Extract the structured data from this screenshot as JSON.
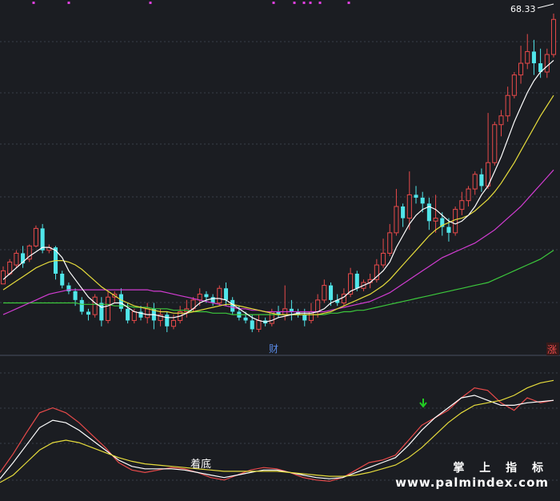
{
  "price_label": "68.33",
  "marker_cai": "财",
  "marker_zhang": "涨",
  "lower_label": "着底",
  "watermark_cn": "掌 上 指 标",
  "watermark_url": "www.palmindex.com",
  "colors": {
    "bg": "#1b1d22",
    "up": "#e84a4a",
    "down": "#50e6ea",
    "ma5": "#ffffff",
    "ma10": "#e6dc3c",
    "ma20": "#d23cd2",
    "ma60": "#3cc83c",
    "grid": "#3a3f4a",
    "dot": "#e040e0",
    "arrow": "#22cc22"
  },
  "chart_data": [
    {
      "type": "candlestick",
      "title": "",
      "price_label": "68.33",
      "candles": [
        [
          0.59,
          0.68,
          0.6,
          0.71
        ],
        [
          0.66,
          0.74,
          0.65,
          0.76
        ],
        [
          0.72,
          0.8,
          0.7,
          0.82
        ],
        [
          0.8,
          0.73,
          0.7,
          0.85
        ],
        [
          0.76,
          0.85,
          0.74,
          0.86
        ],
        [
          0.85,
          0.97,
          0.84,
          0.99
        ],
        [
          0.97,
          0.82,
          0.8,
          1.0
        ],
        [
          0.82,
          0.84,
          0.8,
          0.86
        ],
        [
          0.84,
          0.66,
          0.62,
          0.85
        ],
        [
          0.66,
          0.58,
          0.56,
          0.68
        ],
        [
          0.58,
          0.54,
          0.52,
          0.6
        ],
        [
          0.54,
          0.48,
          0.44,
          0.56
        ],
        [
          0.48,
          0.4,
          0.38,
          0.5
        ],
        [
          0.4,
          0.38,
          0.34,
          0.42
        ],
        [
          0.38,
          0.5,
          0.36,
          0.52
        ],
        [
          0.46,
          0.34,
          0.3,
          0.5
        ],
        [
          0.34,
          0.5,
          0.32,
          0.54
        ],
        [
          0.5,
          0.52,
          0.46,
          0.54
        ],
        [
          0.52,
          0.42,
          0.4,
          0.56
        ],
        [
          0.42,
          0.34,
          0.32,
          0.46
        ],
        [
          0.34,
          0.4,
          0.32,
          0.42
        ],
        [
          0.4,
          0.36,
          0.34,
          0.44
        ],
        [
          0.36,
          0.42,
          0.32,
          0.46
        ],
        [
          0.42,
          0.34,
          0.28,
          0.46
        ],
        [
          0.34,
          0.38,
          0.3,
          0.42
        ],
        [
          0.38,
          0.3,
          0.26,
          0.4
        ],
        [
          0.3,
          0.34,
          0.28,
          0.38
        ],
        [
          0.34,
          0.4,
          0.32,
          0.44
        ],
        [
          0.4,
          0.42,
          0.36,
          0.48
        ],
        [
          0.42,
          0.48,
          0.4,
          0.5
        ],
        [
          0.48,
          0.52,
          0.44,
          0.56
        ],
        [
          0.52,
          0.5,
          0.46,
          0.54
        ],
        [
          0.5,
          0.46,
          0.44,
          0.52
        ],
        [
          0.46,
          0.56,
          0.44,
          0.58
        ],
        [
          0.56,
          0.48,
          0.44,
          0.6
        ],
        [
          0.48,
          0.4,
          0.38,
          0.5
        ],
        [
          0.4,
          0.36,
          0.34,
          0.44
        ],
        [
          0.36,
          0.34,
          0.32,
          0.4
        ],
        [
          0.34,
          0.28,
          0.26,
          0.38
        ],
        [
          0.28,
          0.34,
          0.26,
          0.38
        ],
        [
          0.34,
          0.32,
          0.3,
          0.36
        ],
        [
          0.32,
          0.4,
          0.3,
          0.42
        ],
        [
          0.4,
          0.38,
          0.36,
          0.44
        ],
        [
          0.38,
          0.42,
          0.34,
          0.58
        ],
        [
          0.42,
          0.4,
          0.34,
          0.48
        ],
        [
          0.4,
          0.38,
          0.36,
          0.42
        ],
        [
          0.38,
          0.34,
          0.3,
          0.42
        ],
        [
          0.34,
          0.4,
          0.32,
          0.46
        ],
        [
          0.4,
          0.48,
          0.36,
          0.52
        ],
        [
          0.48,
          0.58,
          0.46,
          0.62
        ],
        [
          0.58,
          0.48,
          0.44,
          0.6
        ],
        [
          0.48,
          0.46,
          0.44,
          0.52
        ],
        [
          0.46,
          0.52,
          0.44,
          0.56
        ],
        [
          0.52,
          0.66,
          0.5,
          0.7
        ],
        [
          0.66,
          0.56,
          0.54,
          0.68
        ],
        [
          0.56,
          0.6,
          0.54,
          0.62
        ],
        [
          0.6,
          0.62,
          0.56,
          0.66
        ],
        [
          0.62,
          0.72,
          0.6,
          0.76
        ],
        [
          0.72,
          0.8,
          0.7,
          0.9
        ],
        [
          0.8,
          0.94,
          0.78,
          1.0
        ],
        [
          0.94,
          1.12,
          0.92,
          1.24
        ],
        [
          1.12,
          1.04,
          0.98,
          1.14
        ],
        [
          1.04,
          1.2,
          0.96,
          1.36
        ],
        [
          1.2,
          1.18,
          1.14,
          1.26
        ],
        [
          1.18,
          1.14,
          1.08,
          1.22
        ],
        [
          1.14,
          1.02,
          0.96,
          1.18
        ],
        [
          1.02,
          1.04,
          0.94,
          1.2
        ],
        [
          1.04,
          0.98,
          0.92,
          1.08
        ],
        [
          0.98,
          0.94,
          0.88,
          1.04
        ],
        [
          0.94,
          1.1,
          0.92,
          1.12
        ],
        [
          1.1,
          1.16,
          1.06,
          1.22
        ],
        [
          1.16,
          1.24,
          1.12,
          1.26
        ],
        [
          1.24,
          1.34,
          1.2,
          1.36
        ],
        [
          1.34,
          1.26,
          1.22,
          1.38
        ],
        [
          1.26,
          1.42,
          1.24,
          1.76
        ],
        [
          1.42,
          1.68,
          1.4,
          1.7
        ],
        [
          1.68,
          1.74,
          1.6,
          1.78
        ],
        [
          1.74,
          1.88,
          1.7,
          1.94
        ],
        [
          1.88,
          2.02,
          1.86,
          2.04
        ],
        [
          2.02,
          2.1,
          1.96,
          2.22
        ],
        [
          2.1,
          2.18,
          2.06,
          2.3
        ],
        [
          2.18,
          2.1,
          2.02,
          2.26
        ],
        [
          2.1,
          2.04,
          2.0,
          2.2
        ],
        [
          2.04,
          2.16,
          2.0,
          2.2
        ],
        [
          2.16,
          2.4,
          2.14,
          2.44
        ]
      ],
      "ma5": [
        0.62,
        0.66,
        0.7,
        0.74,
        0.78,
        0.81,
        0.84,
        0.84,
        0.82,
        0.77,
        0.68,
        0.62,
        0.56,
        0.5,
        0.46,
        0.43,
        0.44,
        0.46,
        0.46,
        0.43,
        0.4,
        0.39,
        0.38,
        0.38,
        0.37,
        0.36,
        0.36,
        0.37,
        0.39,
        0.42,
        0.46,
        0.48,
        0.49,
        0.49,
        0.48,
        0.45,
        0.42,
        0.39,
        0.36,
        0.34,
        0.33,
        0.34,
        0.36,
        0.37,
        0.38,
        0.39,
        0.39,
        0.39,
        0.4,
        0.42,
        0.46,
        0.48,
        0.5,
        0.54,
        0.56,
        0.58,
        0.6,
        0.64,
        0.68,
        0.74,
        0.84,
        0.92,
        1.0,
        1.06,
        1.1,
        1.12,
        1.1,
        1.06,
        1.02,
        1.0,
        1.02,
        1.06,
        1.12,
        1.2,
        1.26,
        1.36,
        1.46,
        1.58,
        1.7,
        1.8,
        1.9,
        1.98,
        2.04,
        2.08,
        2.12
      ],
      "ma10": [
        0.55,
        0.58,
        0.61,
        0.64,
        0.67,
        0.7,
        0.72,
        0.74,
        0.75,
        0.75,
        0.74,
        0.72,
        0.69,
        0.65,
        0.61,
        0.57,
        0.54,
        0.51,
        0.48,
        0.46,
        0.44,
        0.43,
        0.42,
        0.41,
        0.4,
        0.4,
        0.39,
        0.39,
        0.39,
        0.4,
        0.41,
        0.42,
        0.43,
        0.44,
        0.45,
        0.45,
        0.44,
        0.43,
        0.42,
        0.41,
        0.4,
        0.39,
        0.38,
        0.38,
        0.38,
        0.38,
        0.38,
        0.38,
        0.38,
        0.39,
        0.4,
        0.42,
        0.44,
        0.46,
        0.48,
        0.5,
        0.52,
        0.55,
        0.58,
        0.62,
        0.67,
        0.72,
        0.77,
        0.82,
        0.87,
        0.92,
        0.96,
        0.99,
        1.01,
        1.03,
        1.04,
        1.06,
        1.09,
        1.13,
        1.17,
        1.22,
        1.28,
        1.35,
        1.42,
        1.5,
        1.58,
        1.66,
        1.74,
        1.81,
        1.88
      ],
      "ma20": [
        0.38,
        0.4,
        0.42,
        0.44,
        0.46,
        0.48,
        0.5,
        0.52,
        0.53,
        0.54,
        0.55,
        0.55,
        0.55,
        0.55,
        0.55,
        0.55,
        0.55,
        0.55,
        0.55,
        0.55,
        0.55,
        0.55,
        0.55,
        0.54,
        0.54,
        0.53,
        0.52,
        0.51,
        0.5,
        0.49,
        0.48,
        0.47,
        0.46,
        0.45,
        0.44,
        0.43,
        0.42,
        0.42,
        0.41,
        0.41,
        0.4,
        0.4,
        0.4,
        0.4,
        0.4,
        0.4,
        0.4,
        0.4,
        0.4,
        0.4,
        0.41,
        0.42,
        0.43,
        0.44,
        0.45,
        0.46,
        0.47,
        0.49,
        0.51,
        0.53,
        0.56,
        0.59,
        0.62,
        0.65,
        0.68,
        0.71,
        0.74,
        0.77,
        0.79,
        0.81,
        0.83,
        0.85,
        0.87,
        0.9,
        0.93,
        0.96,
        1.0,
        1.04,
        1.08,
        1.12,
        1.17,
        1.22,
        1.27,
        1.32,
        1.37
      ],
      "ma60": [
        0.46,
        0.46,
        0.46,
        0.46,
        0.46,
        0.46,
        0.46,
        0.46,
        0.46,
        0.46,
        0.46,
        0.46,
        0.45,
        0.45,
        0.45,
        0.45,
        0.45,
        0.44,
        0.44,
        0.44,
        0.43,
        0.43,
        0.43,
        0.42,
        0.42,
        0.42,
        0.41,
        0.41,
        0.41,
        0.4,
        0.4,
        0.4,
        0.39,
        0.39,
        0.39,
        0.38,
        0.38,
        0.38,
        0.38,
        0.38,
        0.38,
        0.38,
        0.38,
        0.38,
        0.38,
        0.38,
        0.38,
        0.38,
        0.38,
        0.38,
        0.39,
        0.39,
        0.4,
        0.4,
        0.41,
        0.41,
        0.42,
        0.43,
        0.44,
        0.45,
        0.46,
        0.47,
        0.48,
        0.49,
        0.5,
        0.51,
        0.52,
        0.53,
        0.54,
        0.55,
        0.56,
        0.57,
        0.58,
        0.59,
        0.6,
        0.62,
        0.64,
        0.66,
        0.68,
        0.7,
        0.72,
        0.74,
        0.76,
        0.79,
        0.82
      ],
      "ylim": [
        0.2,
        2.5
      ]
    },
    {
      "type": "line",
      "title": "",
      "label": "着底",
      "series": [
        {
          "color": "#e84a4a",
          "values": [
            0.1,
            0.25,
            0.42,
            0.58,
            0.62,
            0.58,
            0.5,
            0.4,
            0.3,
            0.18,
            0.12,
            0.1,
            0.12,
            0.14,
            0.13,
            0.1,
            0.06,
            0.04,
            0.08,
            0.12,
            0.14,
            0.13,
            0.1,
            0.06,
            0.04,
            0.03,
            0.06,
            0.12,
            0.18,
            0.2,
            0.24,
            0.36,
            0.48,
            0.54,
            0.6,
            0.7,
            0.78,
            0.76,
            0.66,
            0.6,
            0.7,
            0.66,
            0.68
          ]
        },
        {
          "color": "#ffffff",
          "values": [
            0.05,
            0.18,
            0.32,
            0.46,
            0.52,
            0.5,
            0.44,
            0.36,
            0.28,
            0.2,
            0.15,
            0.13,
            0.13,
            0.13,
            0.12,
            0.1,
            0.08,
            0.06,
            0.08,
            0.1,
            0.12,
            0.12,
            0.1,
            0.08,
            0.06,
            0.05,
            0.06,
            0.1,
            0.14,
            0.18,
            0.22,
            0.32,
            0.44,
            0.54,
            0.62,
            0.7,
            0.72,
            0.68,
            0.64,
            0.64,
            0.66,
            0.67,
            0.68
          ]
        },
        {
          "color": "#e6dc3c",
          "values": [
            0.02,
            0.08,
            0.18,
            0.28,
            0.34,
            0.36,
            0.34,
            0.3,
            0.26,
            0.22,
            0.19,
            0.17,
            0.16,
            0.15,
            0.14,
            0.13,
            0.12,
            0.11,
            0.11,
            0.11,
            0.11,
            0.11,
            0.1,
            0.09,
            0.08,
            0.07,
            0.07,
            0.08,
            0.1,
            0.13,
            0.16,
            0.22,
            0.3,
            0.4,
            0.5,
            0.58,
            0.64,
            0.66,
            0.68,
            0.72,
            0.78,
            0.82,
            0.84
          ]
        }
      ],
      "ylim": [
        0,
        0.9
      ]
    }
  ]
}
